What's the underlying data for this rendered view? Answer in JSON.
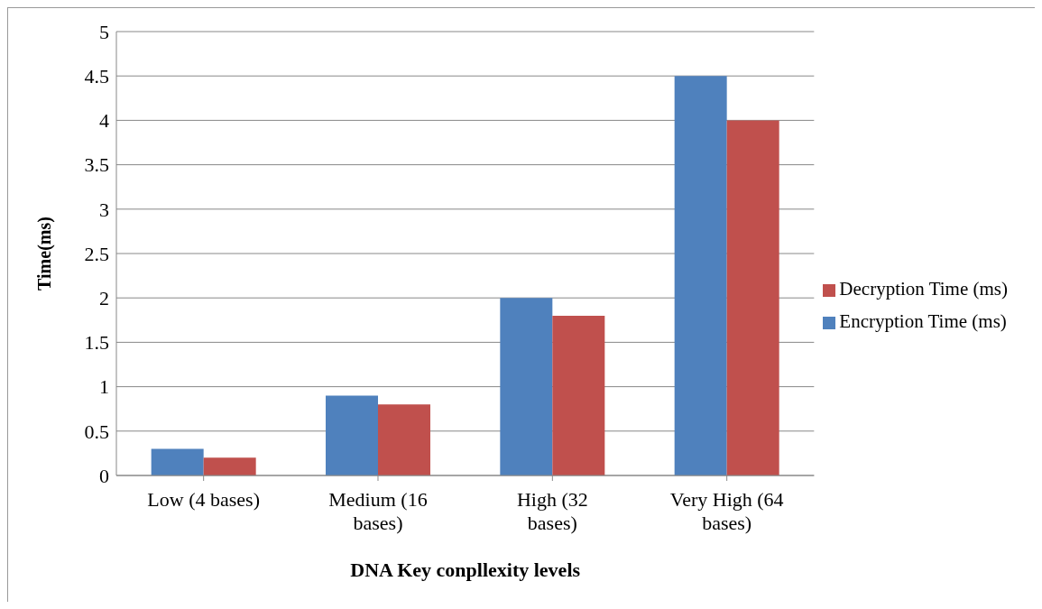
{
  "chart_data": {
    "type": "bar",
    "xlabel": "DNA Key conpllexity levels",
    "ylabel": "Time(ms)",
    "categories": [
      "Low (4 bases)",
      "Medium (16 bases)",
      "High (32 bases)",
      "Very High (64 bases)"
    ],
    "series": [
      {
        "name": "Encryption Time (ms)",
        "color": "#4f81bd",
        "values": [
          0.3,
          0.9,
          2.0,
          4.5
        ]
      },
      {
        "name": "Decryption Time (ms)",
        "color": "#c0504d",
        "values": [
          0.2,
          0.8,
          1.8,
          4.0
        ]
      }
    ],
    "ylim": [
      0,
      5
    ],
    "yticks": [
      0,
      0.5,
      1,
      1.5,
      2,
      2.5,
      3,
      3.5,
      4,
      4.5,
      5
    ],
    "grid": "y",
    "legend": "right"
  }
}
